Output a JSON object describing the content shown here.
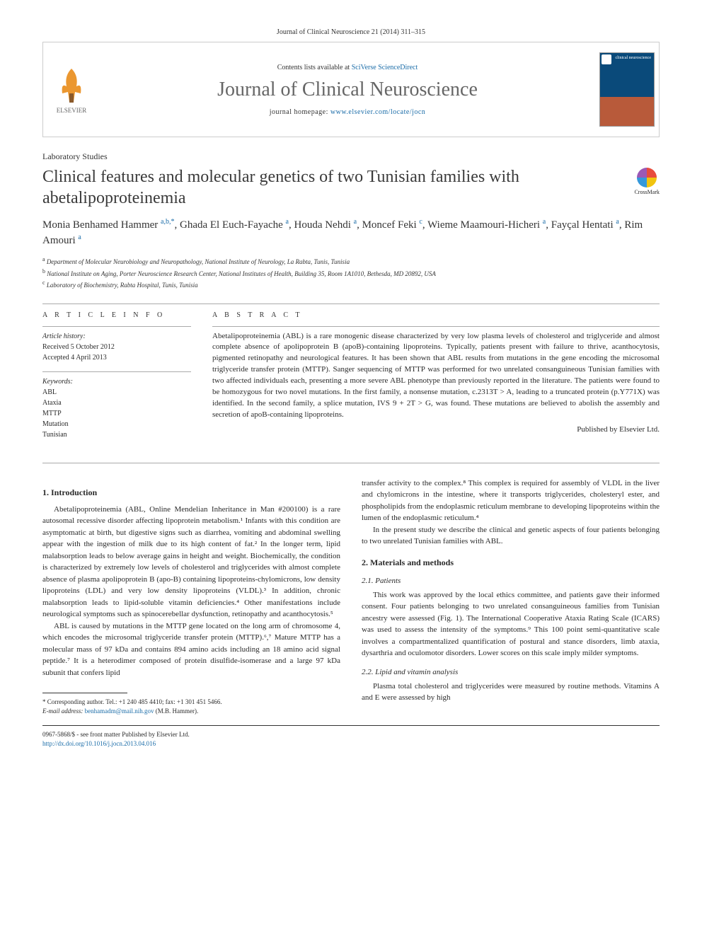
{
  "citation": "Journal of Clinical Neuroscience 21 (2014) 311–315",
  "header": {
    "contents_prefix": "Contents lists available at ",
    "contents_link": "SciVerse ScienceDirect",
    "journal_name": "Journal of Clinical Neuroscience",
    "homepage_prefix": "journal homepage: ",
    "homepage_url": "www.elsevier.com/locate/jocn",
    "elsevier_label": "ELSEVIER",
    "cover_top": "clinical neuroscience"
  },
  "article": {
    "type": "Laboratory Studies",
    "title": "Clinical features and molecular genetics of two Tunisian families with abetalipoproteinemia",
    "crossmark_label": "CrossMark",
    "authors_html": "Monia Benhamed Hammer <sup>a,b,*</sup>, Ghada El Euch-Fayache <sup>a</sup>, Houda Nehdi <sup>a</sup>, Moncef Feki <sup>c</sup>, Wieme Maamouri-Hicheri <sup>a</sup>, Fayçal Hentati <sup>a</sup>, Rim Amouri <sup>a</sup>",
    "affiliations": [
      "a Department of Molecular Neurobiology and Neuropathology, National Institute of Neurology, La Rabta, Tunis, Tunisia",
      "b National Institute on Aging, Porter Neuroscience Research Center, National Institutes of Health, Building 35, Room 1A1010, Bethesda, MD 20892, USA",
      "c Laboratory of Biochemistry, Rabta Hospital, Tunis, Tunisia"
    ]
  },
  "info": {
    "heading": "A R T I C L E   I N F O",
    "history_label": "Article history:",
    "received": "Received 5 October 2012",
    "accepted": "Accepted 4 April 2013",
    "keywords_label": "Keywords:",
    "keywords": [
      "ABL",
      "Ataxia",
      "MTTP",
      "Mutation",
      "Tunisian"
    ]
  },
  "abstract": {
    "heading": "A B S T R A C T",
    "text": "Abetalipoproteinemia (ABL) is a rare monogenic disease characterized by very low plasma levels of cholesterol and triglyceride and almost complete absence of apolipoprotein B (apoB)-containing lipoproteins. Typically, patients present with failure to thrive, acanthocytosis, pigmented retinopathy and neurological features. It has been shown that ABL results from mutations in the gene encoding the microsomal triglyceride transfer protein (MTTP). Sanger sequencing of MTTP was performed for two unrelated consanguineous Tunisian families with two affected individuals each, presenting a more severe ABL phenotype than previously reported in the literature. The patients were found to be homozygous for two novel mutations. In the first family, a nonsense mutation, c.2313T > A, leading to a truncated protein (p.Y771X) was identified. In the second family, a splice mutation, IVS 9 + 2T > G, was found. These mutations are believed to abolish the assembly and secretion of apoB-containing lipoproteins.",
    "publisher": "Published by Elsevier Ltd."
  },
  "body": {
    "s1_heading": "1. Introduction",
    "s1_p1": "Abetalipoproteinemia (ABL, Online Mendelian Inheritance in Man #200100) is a rare autosomal recessive disorder affecting lipoprotein metabolism.¹ Infants with this condition are asymptomatic at birth, but digestive signs such as diarrhea, vomiting and abdominal swelling appear with the ingestion of milk due to its high content of fat.² In the longer term, lipid malabsorption leads to below average gains in height and weight. Biochemically, the condition is characterized by extremely low levels of cholesterol and triglycerides with almost complete absence of plasma apolipoprotein B (apo-B) containing lipoproteins-chylomicrons, low density lipoproteins (LDL) and very low density lipoproteins (VLDL).³ In addition, chronic malabsorption leads to lipid-soluble vitamin deficiencies.⁴ Other manifestations include neurological symptoms such as spinocerebellar dysfunction, retinopathy and acanthocytosis.⁵",
    "s1_p2": "ABL is caused by mutations in the MTTP gene located on the long arm of chromosome 4, which encodes the microsomal triglyceride transfer protein (MTTP).⁶,⁷ Mature MTTP has a molecular mass of 97 kDa and contains 894 amino acids including an 18 amino acid signal peptide.⁷ It is a heterodimer composed of protein disulfide-isomerase and a large 97 kDa subunit that confers lipid",
    "s1_p3": "transfer activity to the complex.⁸ This complex is required for assembly of VLDL in the liver and chylomicrons in the intestine, where it transports triglycerides, cholesteryl ester, and phospholipids from the endoplasmic reticulum membrane to developing lipoproteins within the lumen of the endoplasmic reticulum.⁴",
    "s1_p4": "In the present study we describe the clinical and genetic aspects of four patients belonging to two unrelated Tunisian families with ABL.",
    "s2_heading": "2. Materials and methods",
    "s2_1_heading": "2.1. Patients",
    "s2_1_p1": "This work was approved by the local ethics committee, and patients gave their informed consent. Four patients belonging to two unrelated consanguineous families from Tunisian ancestry were assessed (Fig. 1). The International Cooperative Ataxia Rating Scale (ICARS) was used to assess the intensity of the symptoms.⁹ This 100 point semi-quantitative scale involves a compartmentalized quantification of postural and stance disorders, limb ataxia, dysarthria and oculomotor disorders. Lower scores on this scale imply milder symptoms.",
    "s2_2_heading": "2.2. Lipid and vitamin analysis",
    "s2_2_p1": "Plasma total cholesterol and triglycerides were measured by routine methods. Vitamins A and E were assessed by high"
  },
  "footnote": {
    "corresponding": "* Corresponding author. Tel.: +1 240 485 4410; fax: +1 301 451 5466.",
    "email_label": "E-mail address:",
    "email": "benhamadm@mail.nih.gov",
    "email_name": "(M.B. Hammer)."
  },
  "copyright": {
    "line1": "0967-5868/$ - see front matter Published by Elsevier Ltd.",
    "doi": "http://dx.doi.org/10.1016/j.jocn.2013.04.016"
  },
  "colors": {
    "link": "#1a6ca8",
    "text": "#2a2a2a",
    "border": "#cccccc",
    "journal_title": "#666666"
  },
  "fonts": {
    "body_family": "Georgia, Times New Roman, serif",
    "title_size_pt": 24,
    "journal_title_size_pt": 28,
    "body_size_pt": 11,
    "small_size_pt": 9
  }
}
